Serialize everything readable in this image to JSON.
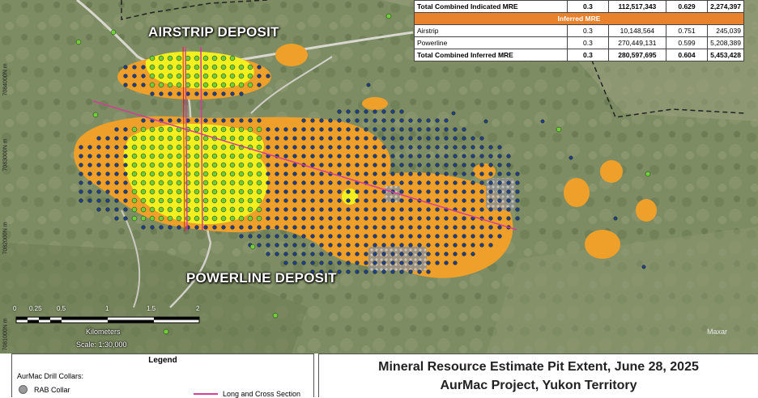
{
  "map": {
    "labels": {
      "airstrip": "AIRSTRIP DEPOSIT",
      "powerline": "POWERLINE DEPOSIT"
    },
    "northings": [
      "7084000N m",
      "7083000N m",
      "7082000N m",
      "7081000N m"
    ],
    "watermark": "Maxar",
    "colors": {
      "pit_shell": "#eea02a",
      "indicated": "#f4ef1e",
      "drill_collar_green": "#6fce3a",
      "drill_collar_blue": "#1f3d8a",
      "rab_collar": "#a7a7a7",
      "section_line": "#d63c9a"
    }
  },
  "table": {
    "row_top": [
      "",
      "0.3",
      "112,517,343",
      "0.629",
      "2,274,397"
    ],
    "row_top_label": "Total Combined Indicated MRE",
    "section_label": "Inferred MRE",
    "rows": [
      {
        "name": "Airstrip",
        "cutoff": "0.3",
        "tonnes": "10,148,564",
        "grade": "0.751",
        "ounces": "245,039"
      },
      {
        "name": "Powerline",
        "cutoff": "0.3",
        "tonnes": "270,449,131",
        "grade": "0.599",
        "ounces": "5,208,389"
      }
    ],
    "total": {
      "name": "Total Combined Inferred MRE",
      "cutoff": "0.3",
      "tonnes": "280,597,695",
      "grade": "0.604",
      "ounces": "5,453,428"
    }
  },
  "scalebar": {
    "ticks": [
      "0",
      "0.25",
      "0.5",
      "1",
      "1.5",
      "2"
    ],
    "units": "Kilometers",
    "scale": "Scale: 1:30,000"
  },
  "legend": {
    "title": "Legend",
    "subtitle": "AurMac Drill Collars:",
    "rab": "RAB Collar",
    "section": "Long and Cross Section"
  },
  "title": {
    "line1": "Mineral Resource Estimate Pit Extent, June 28, 2025",
    "line2": "AurMac Project, Yukon Territory"
  }
}
